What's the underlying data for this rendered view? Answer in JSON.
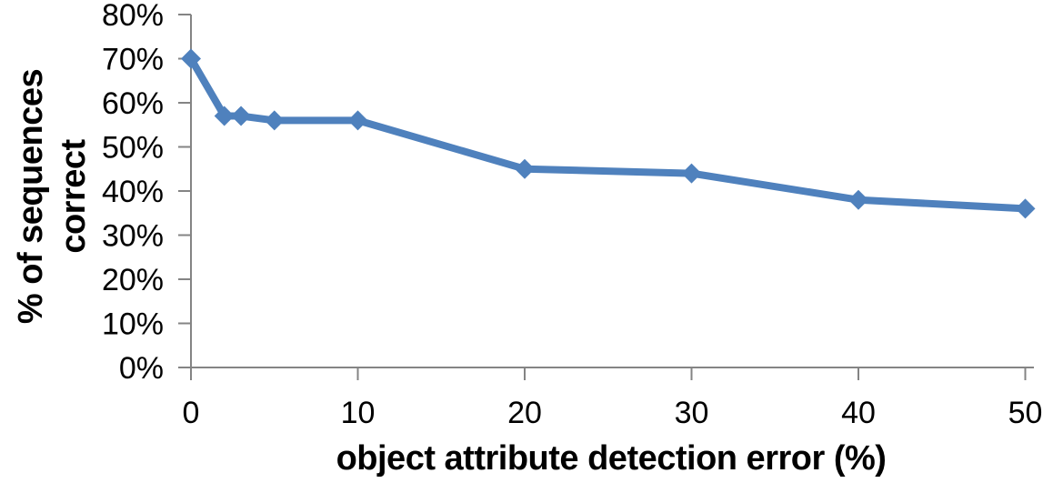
{
  "chart_data": {
    "type": "line",
    "title": "",
    "xlabel": "object attribute detection error (%)",
    "ylabel": "% of sequences correct",
    "ylabel_lines": [
      "% of sequences",
      "correct"
    ],
    "x": [
      0,
      2,
      3,
      5,
      10,
      20,
      30,
      40,
      50
    ],
    "series": [
      {
        "name": "% of sequences correct",
        "values": [
          70,
          57,
          57,
          56,
          56,
          45,
          44,
          38,
          36
        ]
      }
    ],
    "xlim": [
      0,
      50
    ],
    "ylim": [
      0,
      80
    ],
    "x_ticks": [
      0,
      10,
      20,
      30,
      40,
      50
    ],
    "x_tick_labels": [
      "0",
      "10",
      "20",
      "30",
      "40",
      "50"
    ],
    "y_ticks": [
      0,
      10,
      20,
      30,
      40,
      50,
      60,
      70,
      80
    ],
    "y_tick_labels": [
      "0%",
      "10%",
      "20%",
      "30%",
      "40%",
      "50%",
      "60%",
      "70%",
      "80%"
    ],
    "grid": "off",
    "legend": "none",
    "marker": "diamond",
    "colors": {
      "series": "#4F81BD",
      "axis": "#848484",
      "text": "#000000"
    }
  }
}
